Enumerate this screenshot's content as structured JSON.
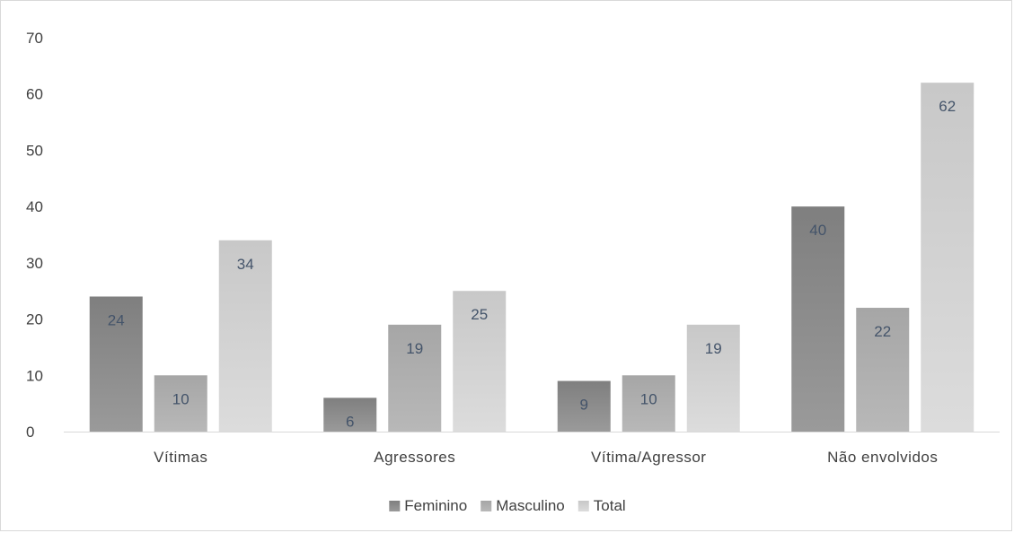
{
  "chart_data": {
    "type": "bar",
    "categories": [
      "Vítimas",
      "Agressores",
      "Vítima/Agressor",
      "Não envolvidos"
    ],
    "series": [
      {
        "name": "Feminino",
        "values": [
          24,
          6,
          9,
          40
        ],
        "color_top": "#7f7f7f",
        "color_bottom": "#9a9a9a"
      },
      {
        "name": "Masculino",
        "values": [
          10,
          19,
          10,
          22
        ],
        "color_top": "#a6a6a6",
        "color_bottom": "#b8b8b8"
      },
      {
        "name": "Total",
        "values": [
          34,
          25,
          19,
          62
        ],
        "color_top": "#c8c8c8",
        "color_bottom": "#dcdcdc"
      }
    ],
    "y_ticks": [
      "0",
      "10",
      "20",
      "30",
      "40",
      "50",
      "60",
      "70"
    ],
    "ylim": [
      0,
      70
    ],
    "legend_position": "bottom",
    "grid": false,
    "title": "",
    "xlabel": "",
    "ylabel": ""
  }
}
